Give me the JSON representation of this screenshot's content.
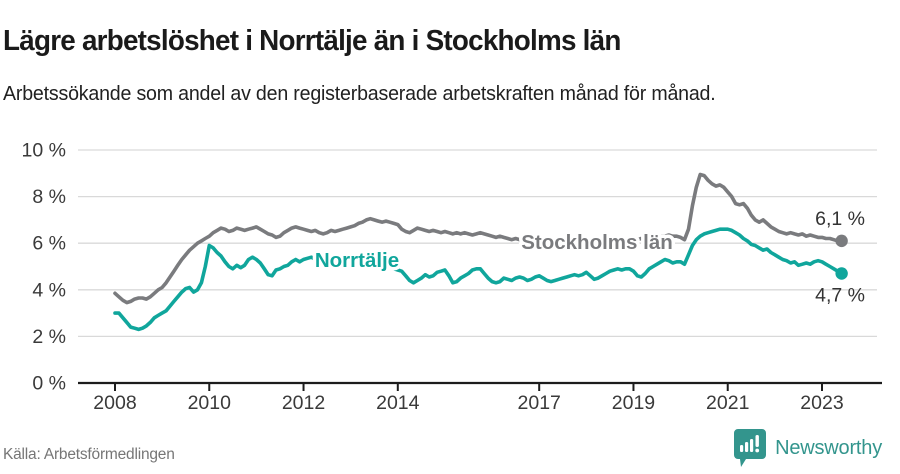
{
  "header": {
    "title": "Lägre arbetslöshet i Norrtälje än i Stockholms län",
    "subtitle": "Arbetssökande som andel av den registerbaserade arbetskraften månad för månad."
  },
  "chart_data": {
    "type": "line",
    "title": "Lägre arbetslöshet i Norrtälje än i Stockholms län",
    "x_unit": "month",
    "x_start": "2008-01",
    "x_end": "2023-06",
    "ylim": [
      0,
      10
    ],
    "grid": "horizontal",
    "legend_position": "inline-labels",
    "y_ticks": [
      {
        "value": 0,
        "label": "0 %"
      },
      {
        "value": 2,
        "label": "2 %"
      },
      {
        "value": 4,
        "label": "4 %"
      },
      {
        "value": 6,
        "label": "6 %"
      },
      {
        "value": 8,
        "label": "8 %"
      },
      {
        "value": 10,
        "label": "10 %"
      }
    ],
    "x_ticks": [
      {
        "year": 2008,
        "label": "2008"
      },
      {
        "year": 2010,
        "label": "2010"
      },
      {
        "year": 2012,
        "label": "2012"
      },
      {
        "year": 2014,
        "label": "2014"
      },
      {
        "year": 2017,
        "label": "2017"
      },
      {
        "year": 2019,
        "label": "2019"
      },
      {
        "year": 2021,
        "label": "2021"
      },
      {
        "year": 2023,
        "label": "2023"
      }
    ],
    "series": [
      {
        "name": "Stockholms län",
        "color": "#7a7b7e",
        "end_value": 6.1,
        "end_label": "6,1 %",
        "values": [
          3.85,
          3.7,
          3.55,
          3.45,
          3.5,
          3.6,
          3.65,
          3.65,
          3.6,
          3.7,
          3.85,
          4.0,
          4.1,
          4.3,
          4.55,
          4.8,
          5.05,
          5.3,
          5.5,
          5.7,
          5.85,
          6.0,
          6.1,
          6.2,
          6.3,
          6.45,
          6.55,
          6.65,
          6.6,
          6.5,
          6.55,
          6.65,
          6.6,
          6.55,
          6.6,
          6.65,
          6.7,
          6.6,
          6.5,
          6.4,
          6.35,
          6.25,
          6.3,
          6.45,
          6.55,
          6.65,
          6.7,
          6.65,
          6.6,
          6.55,
          6.5,
          6.55,
          6.45,
          6.4,
          6.45,
          6.55,
          6.5,
          6.55,
          6.6,
          6.65,
          6.7,
          6.75,
          6.85,
          6.9,
          7.0,
          7.05,
          7.0,
          6.95,
          6.9,
          6.95,
          6.9,
          6.85,
          6.8,
          6.6,
          6.5,
          6.45,
          6.55,
          6.65,
          6.6,
          6.55,
          6.5,
          6.55,
          6.5,
          6.45,
          6.5,
          6.45,
          6.4,
          6.45,
          6.4,
          6.45,
          6.4,
          6.35,
          6.4,
          6.45,
          6.4,
          6.35,
          6.3,
          6.25,
          6.3,
          6.25,
          6.2,
          6.15,
          6.2,
          6.15,
          6.1,
          6.05,
          6.1,
          6.05,
          6.0,
          5.95,
          6.0,
          5.95,
          6.0,
          6.0,
          5.95,
          6.0,
          6.05,
          6.0,
          6.05,
          6.0,
          6.05,
          6.0,
          6.05,
          6.1,
          6.05,
          6.1,
          6.1,
          6.15,
          6.1,
          6.15,
          6.2,
          6.15,
          6.1,
          6.15,
          6.2,
          6.2,
          6.25,
          6.3,
          6.25,
          6.3,
          6.3,
          6.35,
          6.3,
          6.3,
          6.25,
          6.15,
          6.6,
          7.6,
          8.4,
          8.95,
          8.9,
          8.7,
          8.55,
          8.45,
          8.5,
          8.4,
          8.2,
          8.0,
          7.7,
          7.65,
          7.7,
          7.5,
          7.2,
          7.0,
          6.9,
          7.0,
          6.85,
          6.7,
          6.6,
          6.5,
          6.45,
          6.4,
          6.45,
          6.4,
          6.35,
          6.4,
          6.3,
          6.35,
          6.3,
          6.25,
          6.25,
          6.2,
          6.2,
          6.15,
          6.1,
          6.1
        ]
      },
      {
        "name": "Norrtälje",
        "color": "#10a69c",
        "end_value": 4.7,
        "end_label": "4,7 %",
        "values": [
          3.0,
          3.0,
          2.8,
          2.6,
          2.4,
          2.35,
          2.3,
          2.35,
          2.45,
          2.6,
          2.8,
          2.9,
          3.0,
          3.1,
          3.3,
          3.5,
          3.7,
          3.9,
          4.05,
          4.1,
          3.9,
          4.0,
          4.3,
          5.0,
          5.9,
          5.8,
          5.6,
          5.45,
          5.2,
          5.0,
          4.9,
          5.05,
          4.95,
          5.05,
          5.3,
          5.4,
          5.3,
          5.15,
          4.9,
          4.65,
          4.6,
          4.85,
          4.9,
          5.0,
          5.05,
          5.2,
          5.3,
          5.2,
          5.3,
          5.35,
          5.4,
          5.3,
          5.15,
          5.0,
          4.95,
          5.1,
          5.25,
          5.35,
          5.45,
          5.35,
          5.25,
          5.15,
          5.0,
          5.1,
          5.2,
          5.3,
          5.4,
          5.45,
          5.3,
          5.15,
          5.0,
          4.9,
          4.85,
          4.8,
          4.6,
          4.4,
          4.3,
          4.4,
          4.5,
          4.65,
          4.55,
          4.6,
          4.75,
          4.8,
          4.85,
          4.6,
          4.3,
          4.35,
          4.5,
          4.6,
          4.7,
          4.85,
          4.9,
          4.9,
          4.7,
          4.5,
          4.35,
          4.3,
          4.35,
          4.5,
          4.45,
          4.4,
          4.5,
          4.55,
          4.5,
          4.4,
          4.45,
          4.55,
          4.6,
          4.5,
          4.4,
          4.35,
          4.4,
          4.45,
          4.5,
          4.55,
          4.6,
          4.65,
          4.6,
          4.65,
          4.75,
          4.6,
          4.45,
          4.5,
          4.6,
          4.7,
          4.8,
          4.85,
          4.9,
          4.85,
          4.9,
          4.9,
          4.8,
          4.6,
          4.55,
          4.7,
          4.9,
          5.0,
          5.1,
          5.2,
          5.3,
          5.25,
          5.15,
          5.2,
          5.2,
          5.1,
          5.5,
          5.9,
          6.15,
          6.3,
          6.4,
          6.45,
          6.5,
          6.55,
          6.6,
          6.6,
          6.6,
          6.55,
          6.45,
          6.35,
          6.2,
          6.1,
          5.95,
          5.9,
          5.8,
          5.7,
          5.75,
          5.6,
          5.5,
          5.4,
          5.3,
          5.25,
          5.15,
          5.2,
          5.05,
          5.1,
          5.15,
          5.1,
          5.2,
          5.25,
          5.2,
          5.1,
          5.0,
          4.9,
          4.8,
          4.7
        ]
      }
    ],
    "colors": {
      "grid": "#d9d9d9",
      "axis": "#1c1c1c",
      "tick_label": "#3a3a3a",
      "stockholm_line": "#7a7b7e",
      "norrtalje_line": "#10a69c"
    }
  },
  "footer": {
    "source": "Källa: Arbetsförmedlingen",
    "brand": "Newsworthy",
    "brand_color": "#33958d"
  }
}
